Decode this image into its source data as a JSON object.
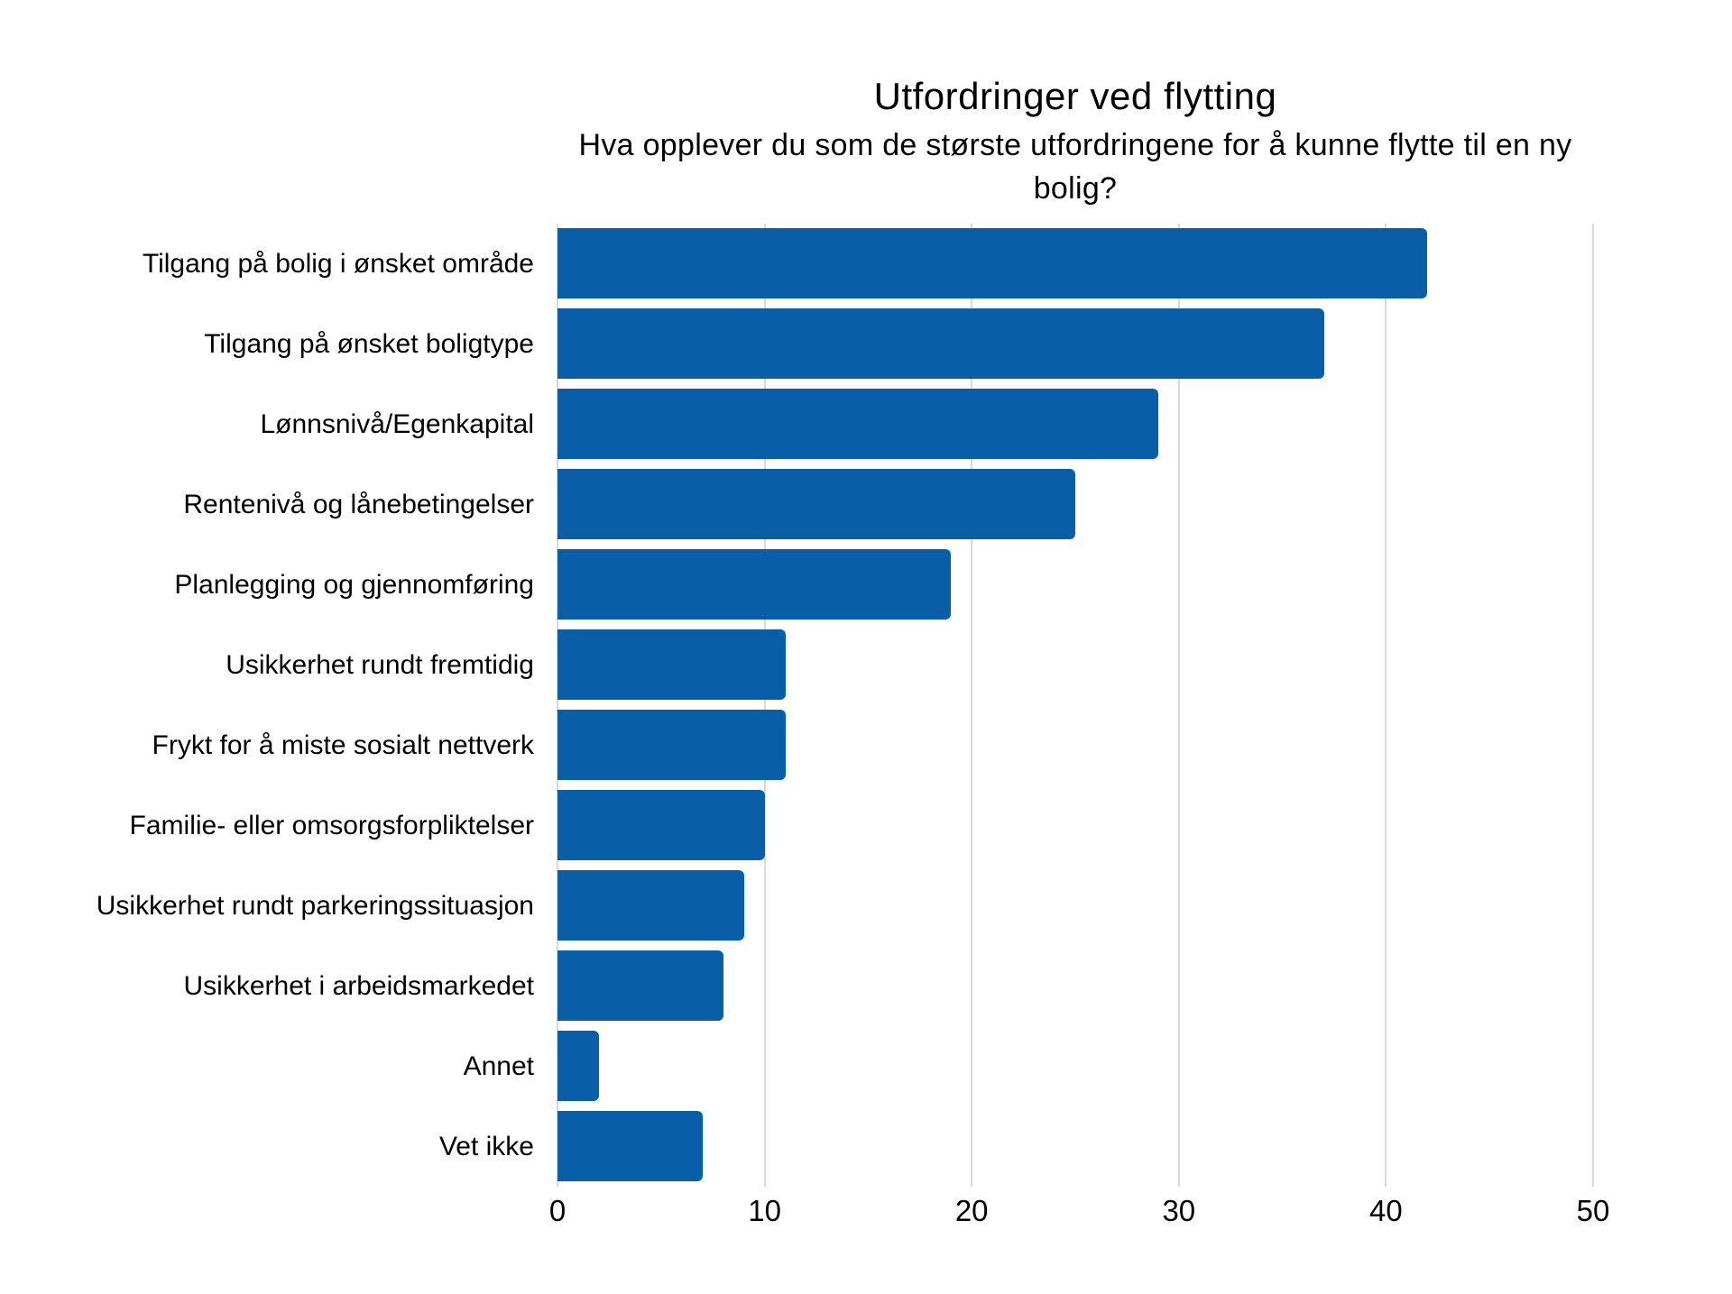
{
  "chart_data": {
    "type": "bar",
    "orientation": "horizontal",
    "title": "Utfordringer ved flytting",
    "subtitle": "Hva opplever du som de største utfordringene for å kunne flytte til en ny bolig?",
    "categories": [
      "Tilgang på bolig i ønsket område",
      "Tilgang på ønsket boligtype",
      "Lønnsnivå/Egenkapital",
      "Rentenivå og lånebetingelser",
      "Planlegging og gjennomføring",
      "Usikkerhet rundt fremtidig",
      "Frykt for å miste sosialt nettverk",
      "Familie- eller omsorgsforpliktelser",
      "Usikkerhet rundt parkeringssituasjon",
      "Usikkerhet i arbeidsmarkedet",
      "Annet",
      "Vet ikke"
    ],
    "values": [
      42,
      37,
      29,
      25,
      19,
      11,
      11,
      10,
      9,
      8,
      2,
      7
    ],
    "xlabel": "",
    "ylabel": "",
    "xlim": [
      0,
      50
    ],
    "x_ticks": [
      0,
      10,
      20,
      30,
      40,
      50
    ],
    "grid": "vertical-only",
    "legend": "none",
    "bar_color": "#0a5ea7",
    "gridline_color": "#d9d9d9",
    "text_color": "#000000",
    "background_color": "#ffffff"
  }
}
